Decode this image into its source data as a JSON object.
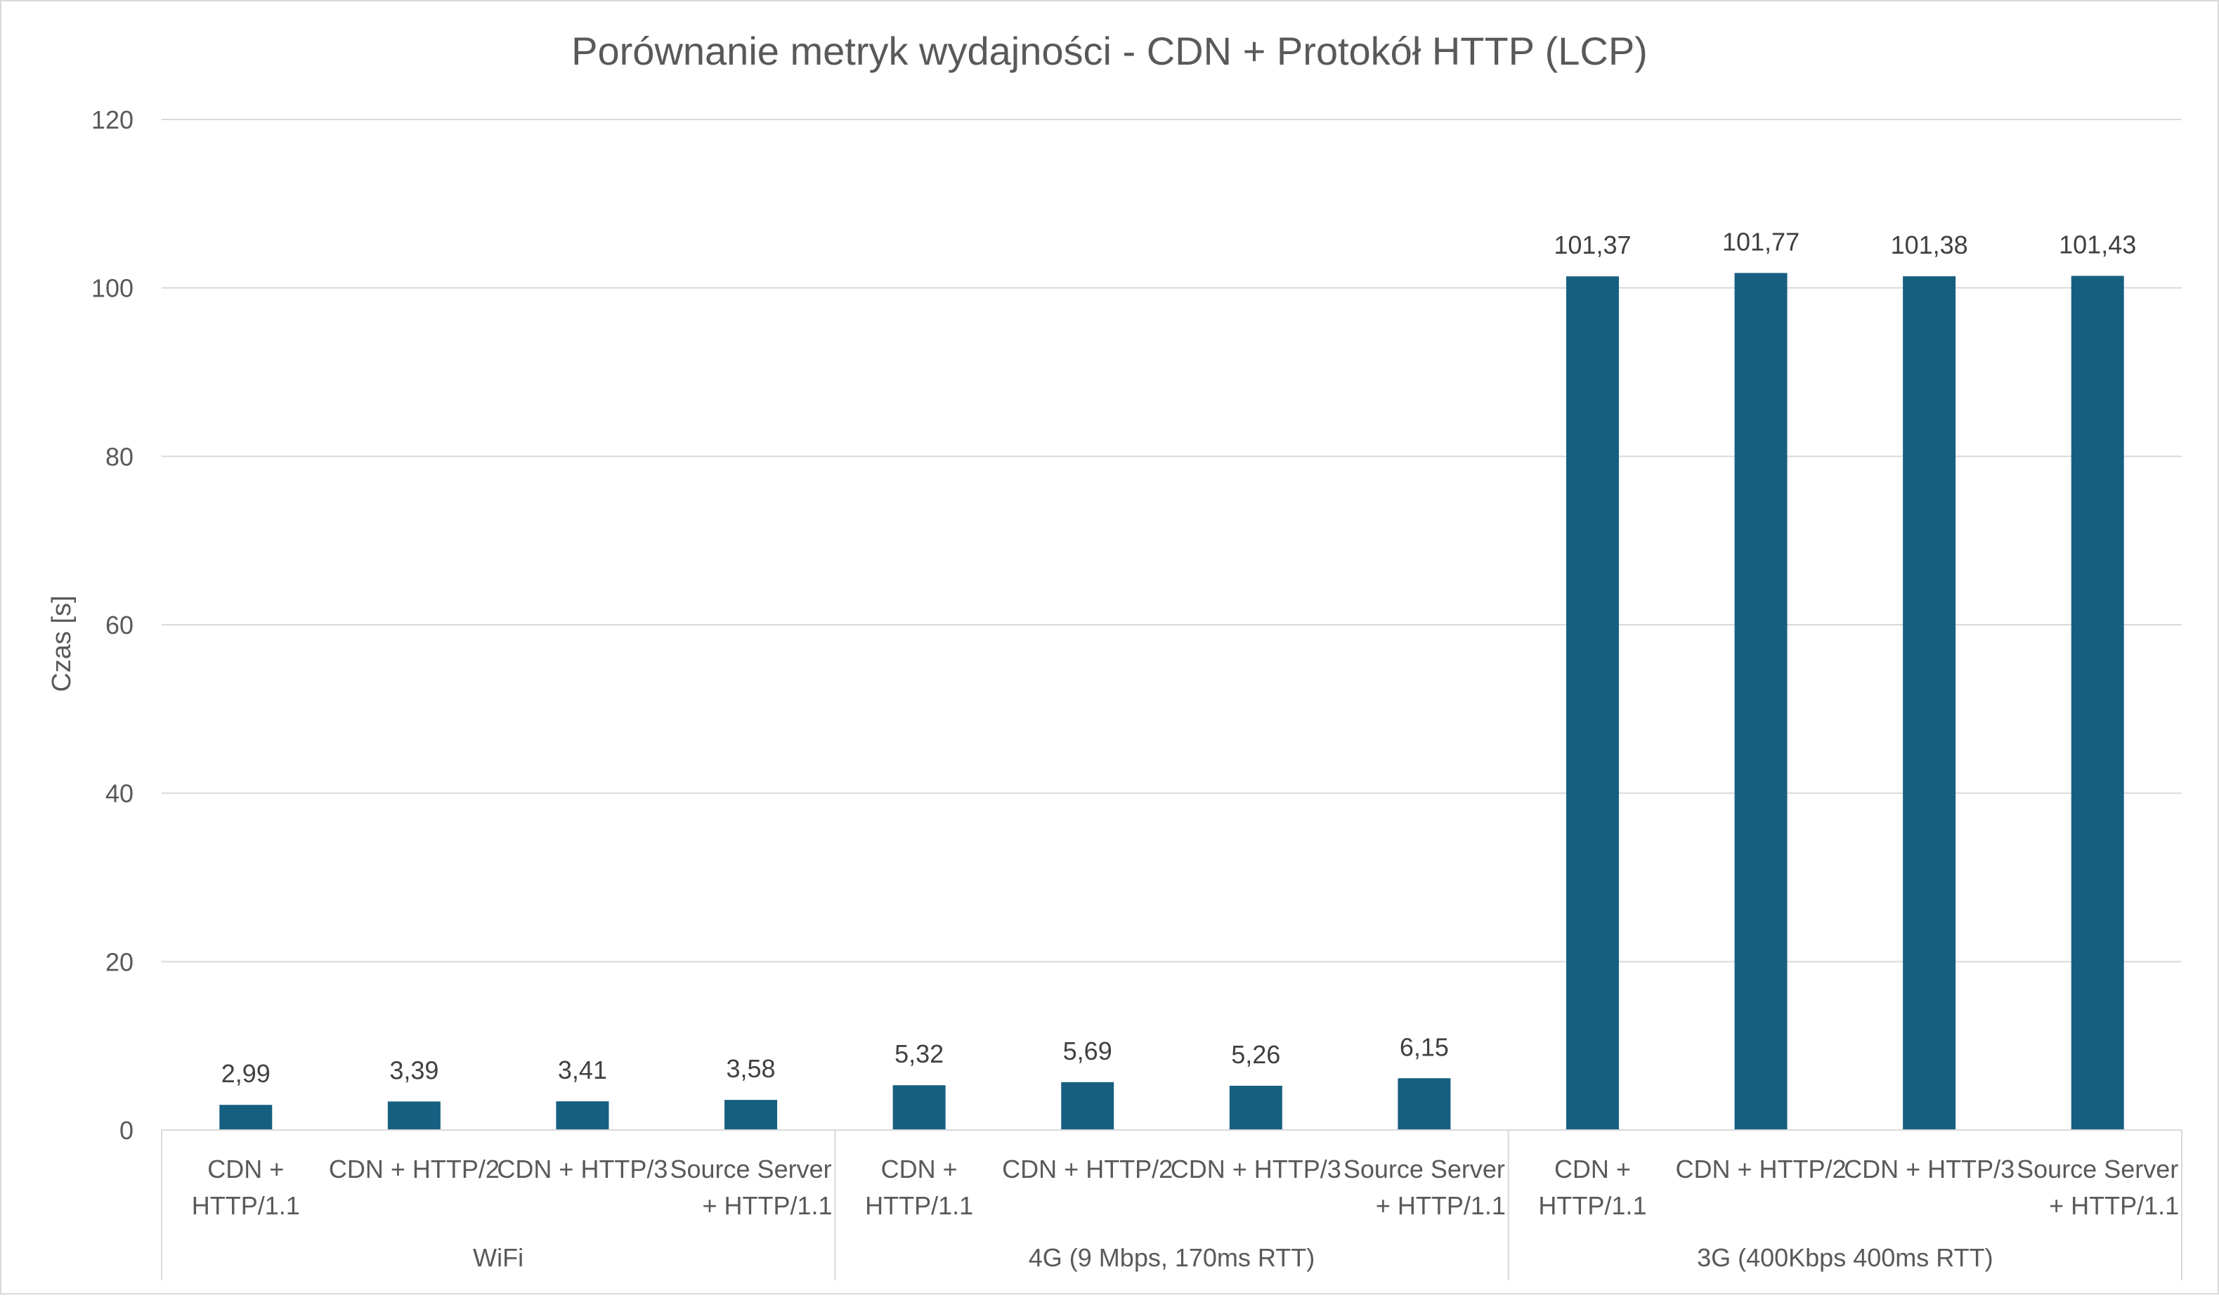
{
  "chart_data": {
    "type": "bar",
    "title": "Porównanie metryk wydajności - CDN + Protokół HTTP (LCP)",
    "xlabel": "",
    "ylabel": "Czas [s]",
    "ylim": [
      0,
      120
    ],
    "yticks": [
      0,
      20,
      40,
      60,
      80,
      100,
      120
    ],
    "grid": true,
    "legend": "none",
    "bar_color": "#175F81",
    "groups": [
      {
        "label": "WiFi",
        "categories": [
          [
            "CDN +",
            "HTTP/1.1"
          ],
          [
            "CDN + HTTP/2"
          ],
          [
            "CDN + HTTP/3"
          ],
          [
            "Source Server",
            "+ HTTP/1.1"
          ]
        ],
        "values": [
          2.99,
          3.39,
          3.41,
          3.58
        ],
        "value_labels": [
          "2,99",
          "3,39",
          "3,41",
          "3,58"
        ]
      },
      {
        "label": "4G (9 Mbps, 170ms RTT)",
        "categories": [
          [
            "CDN +",
            "HTTP/1.1"
          ],
          [
            "CDN + HTTP/2"
          ],
          [
            "CDN + HTTP/3"
          ],
          [
            "Source Server",
            "+ HTTP/1.1"
          ]
        ],
        "values": [
          5.32,
          5.69,
          5.26,
          6.15
        ],
        "value_labels": [
          "5,32",
          "5,69",
          "5,26",
          "6,15"
        ]
      },
      {
        "label": "3G (400Kbps 400ms RTT)",
        "categories": [
          [
            "CDN +",
            "HTTP/1.1"
          ],
          [
            "CDN + HTTP/2"
          ],
          [
            "CDN + HTTP/3"
          ],
          [
            "Source Server",
            "+ HTTP/1.1"
          ]
        ],
        "values": [
          101.37,
          101.77,
          101.38,
          101.43
        ],
        "value_labels": [
          "101,37",
          "101,77",
          "101,38",
          "101,43"
        ]
      }
    ]
  }
}
